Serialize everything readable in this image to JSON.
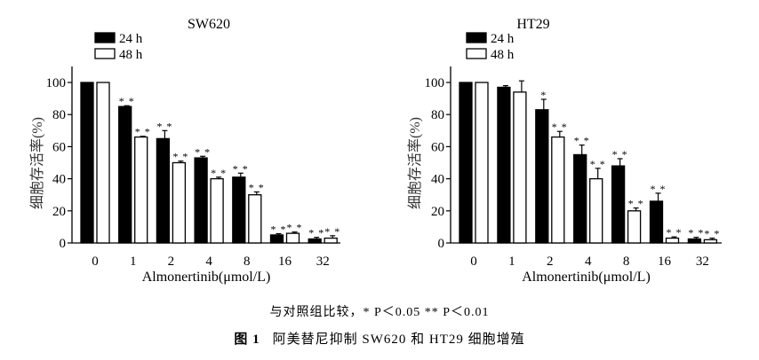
{
  "chart_data": [
    {
      "type": "bar",
      "title": "SW620",
      "xlabel": "Almonertinib(μmol/L)",
      "ylabel": "细胞存活率(%)",
      "ylim": [
        0,
        110
      ],
      "yticks": [
        0,
        20,
        40,
        60,
        80,
        100
      ],
      "categories": [
        "0",
        "1",
        "2",
        "4",
        "8",
        "16",
        "32"
      ],
      "legend_position": "top-left",
      "series": [
        {
          "name": "24 h",
          "color": "#000000",
          "values": [
            100,
            85,
            65,
            53,
            41,
            5,
            2.5
          ],
          "errors": [
            0,
            0.5,
            5,
            1,
            2.5,
            0.8,
            1
          ],
          "significance": [
            "",
            "**",
            "**",
            "**",
            "**",
            "**",
            "**"
          ]
        },
        {
          "name": "48 h",
          "color": "#ffffff",
          "values": [
            100,
            66,
            50,
            40,
            30,
            6,
            3
          ],
          "errors": [
            0,
            0.5,
            1,
            1,
            1.8,
            0.8,
            1.5
          ],
          "significance": [
            "",
            "**",
            "**",
            "**",
            "**",
            "**",
            "**"
          ]
        }
      ]
    },
    {
      "type": "bar",
      "title": "HT29",
      "xlabel": "Almonertinib(μmol/L)",
      "ylabel": "细胞存活率(%)",
      "ylim": [
        0,
        110
      ],
      "yticks": [
        0,
        20,
        40,
        60,
        80,
        100
      ],
      "categories": [
        "0",
        "1",
        "2",
        "4",
        "8",
        "16",
        "32"
      ],
      "legend_position": "top-left",
      "series": [
        {
          "name": "24 h",
          "color": "#000000",
          "values": [
            100,
            97,
            83,
            55,
            48,
            26,
            2.5
          ],
          "errors": [
            0,
            1,
            6.5,
            6,
            4.5,
            5,
            1
          ],
          "significance": [
            "",
            "",
            "*",
            "**",
            "**",
            "**",
            "**"
          ]
        },
        {
          "name": "48 h",
          "color": "#ffffff",
          "values": [
            100,
            94,
            66,
            40,
            20,
            3,
            2
          ],
          "errors": [
            0,
            7,
            3.5,
            6.5,
            1.8,
            0.8,
            1
          ],
          "significance": [
            "",
            "",
            "**",
            "**",
            "**",
            "**",
            "**"
          ]
        }
      ]
    }
  ],
  "note": "与对照组比较，* P＜0.05 ** P＜0.01",
  "caption": {
    "label": "图 1",
    "text": "阿美替尼抑制 SW620 和 HT29 细胞增殖"
  }
}
